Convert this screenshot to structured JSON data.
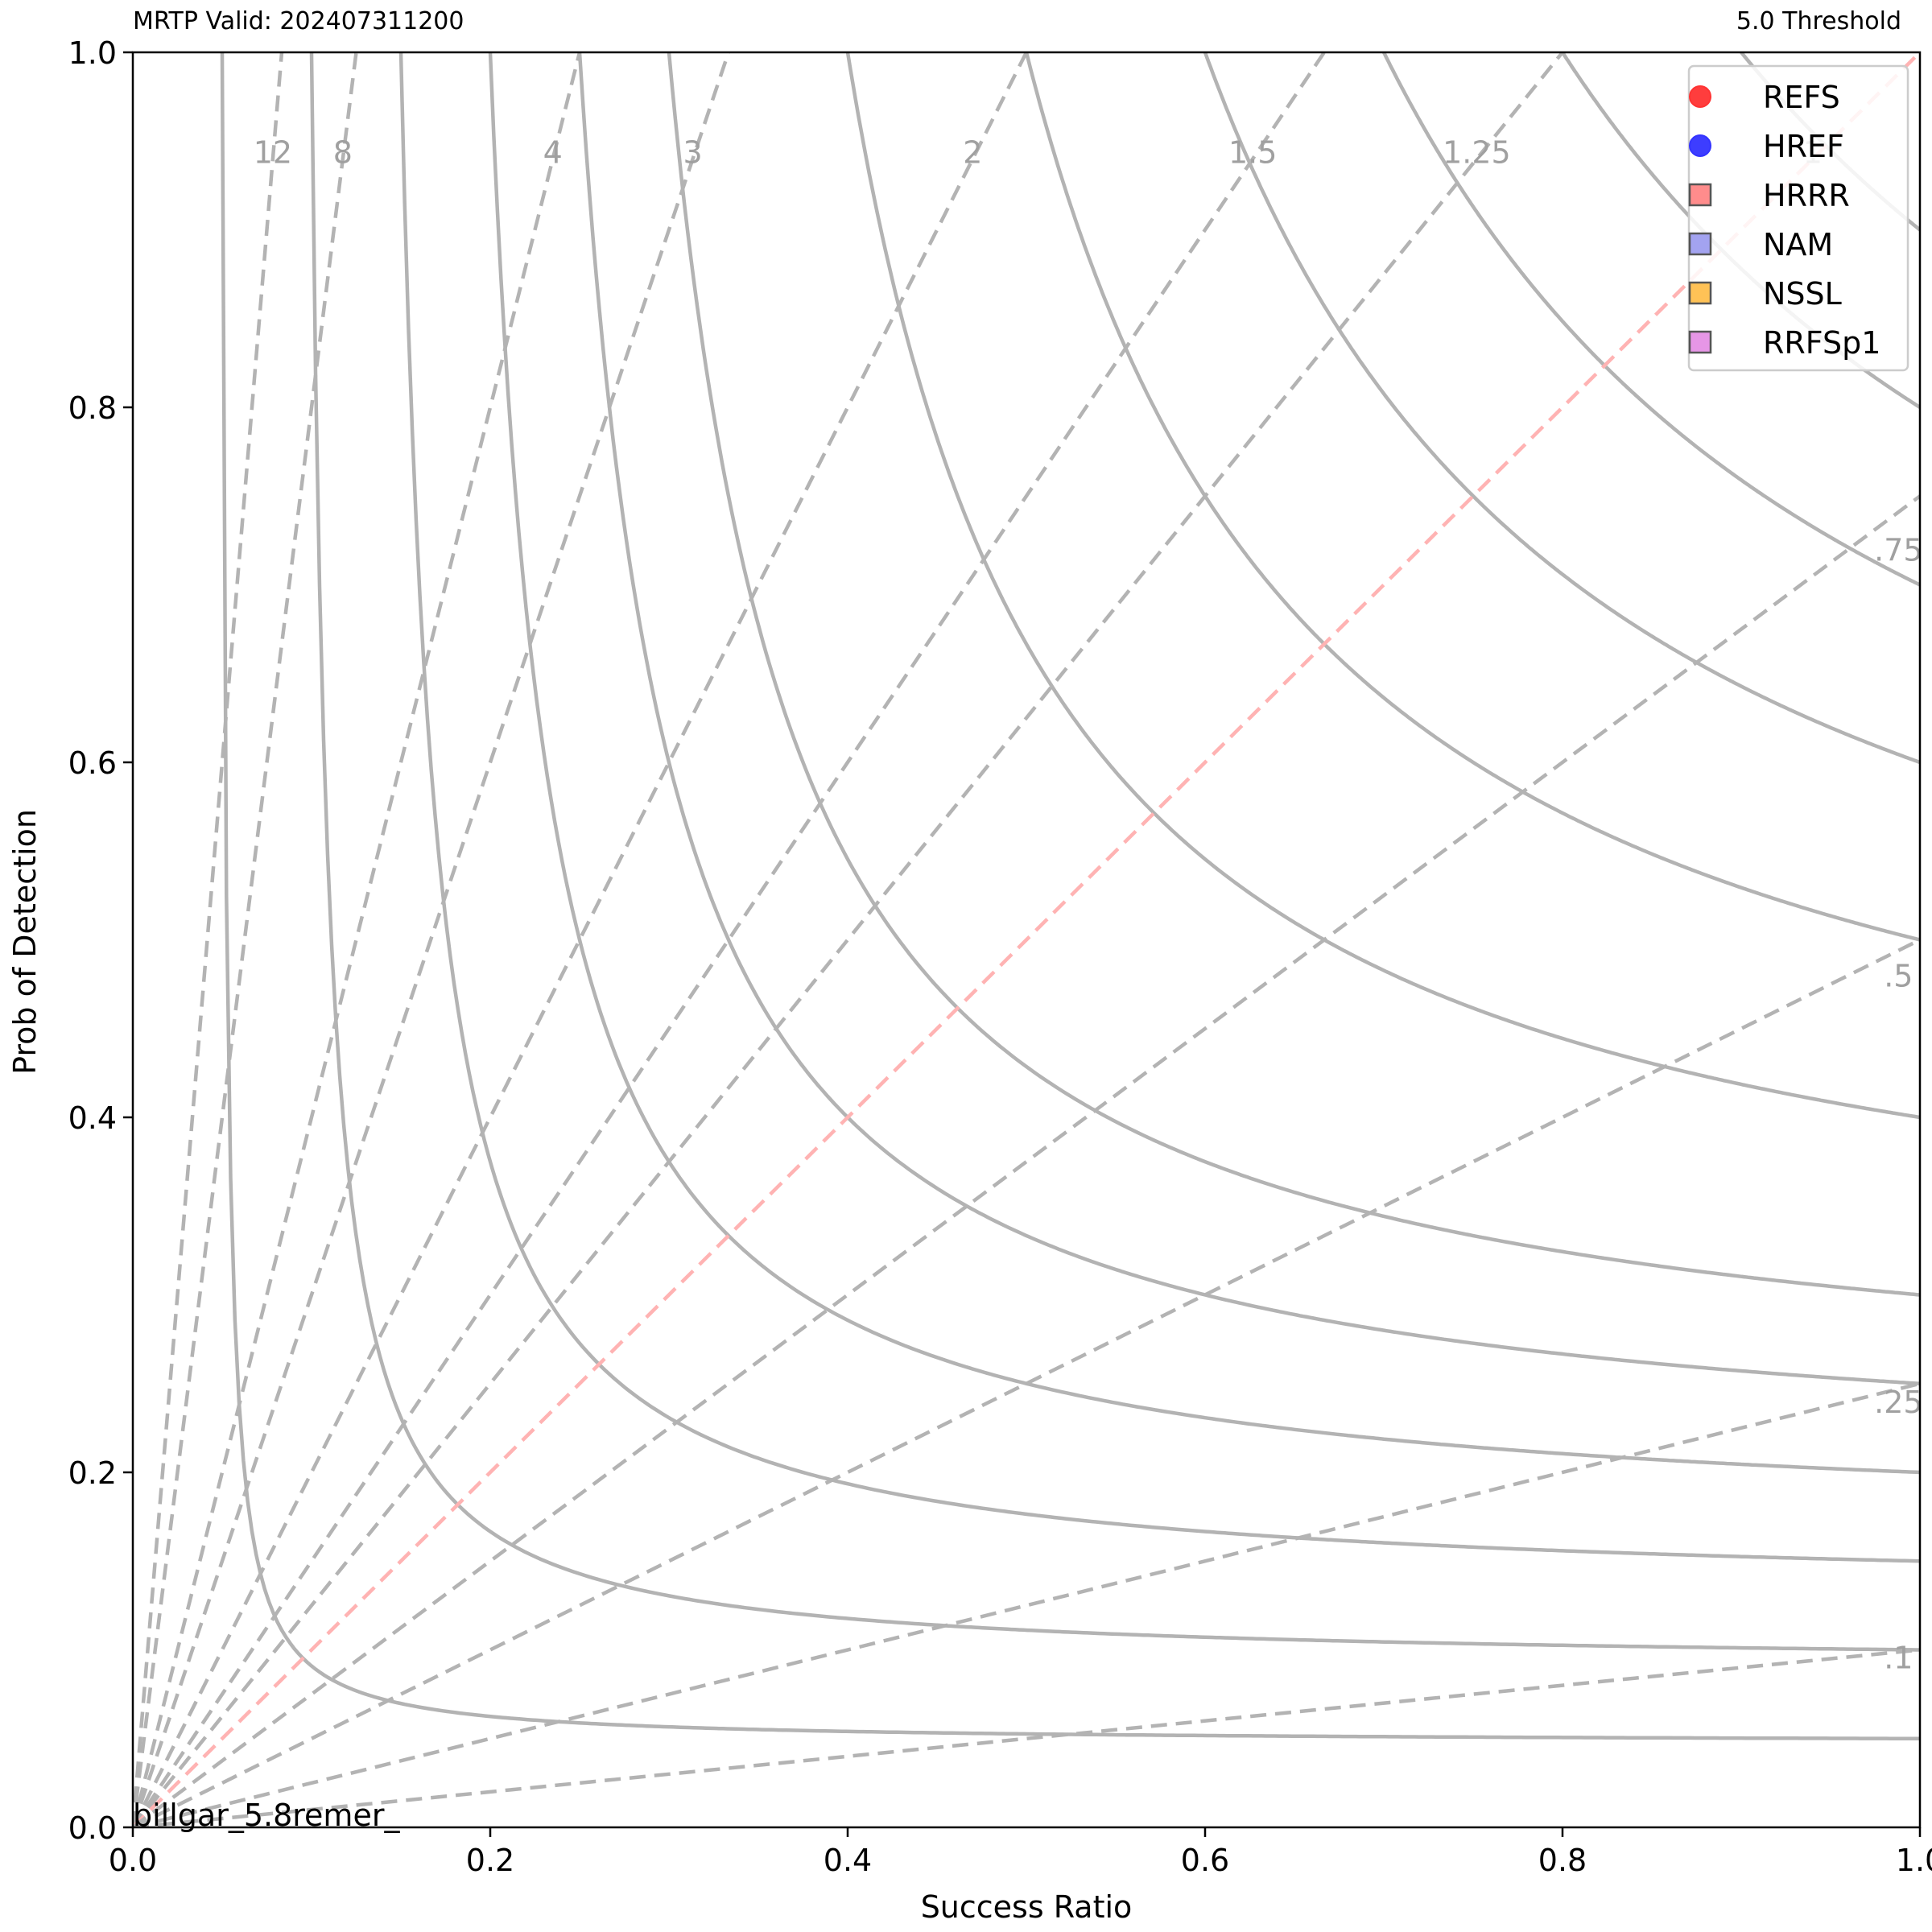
{
  "header": {
    "left_title": "MRTP Valid: 202407311200",
    "right_title": "5.0 Threshold"
  },
  "footer_text": "billgar_5.8remer_",
  "chart_data": {
    "type": "scatter",
    "title": "",
    "xlabel": "Success Ratio",
    "ylabel": "Prob of Detection",
    "xlim": [
      0.0,
      1.0
    ],
    "ylim": [
      0.0,
      1.0
    ],
    "x_ticks": [
      "0.0",
      "0.2",
      "0.4",
      "0.6",
      "0.8",
      "1.0"
    ],
    "y_ticks": [
      "0.0",
      "0.2",
      "0.4",
      "0.6",
      "0.8",
      "1.0"
    ],
    "grid": false,
    "legend_position": "top-right",
    "csi_contours": {
      "values": [
        0.05,
        0.1,
        0.15,
        0.2,
        0.25,
        0.3,
        0.4,
        0.5,
        0.6,
        0.7,
        0.8,
        0.9
      ],
      "style": "solid",
      "color": "#b3b3b3"
    },
    "bias_lines": {
      "values": [
        12,
        8,
        4,
        3,
        2,
        1.5,
        1.25,
        1,
        0.75,
        0.5,
        0.25,
        0.1
      ],
      "labels": [
        "12",
        "8",
        "4",
        "3",
        "2",
        "1.5",
        "1.25",
        "1",
        ".75",
        ".5",
        ".25",
        ".1"
      ],
      "style": "dashed",
      "color": "#b3b3b3",
      "unity_color": "#ffb3b3"
    },
    "series": [
      {
        "name": "REFS",
        "marker": "circle",
        "color": "#ff3333",
        "points": []
      },
      {
        "name": "HREF",
        "marker": "circle",
        "color": "#3333ff",
        "points": []
      },
      {
        "name": "HRRR",
        "marker": "square",
        "color": "#ff7f7f",
        "points": []
      },
      {
        "name": "NAM",
        "marker": "square",
        "color": "#9999ee",
        "points": []
      },
      {
        "name": "NSSL",
        "marker": "square",
        "color": "#ffbb44",
        "points": []
      },
      {
        "name": "RRFSp1",
        "marker": "square",
        "color": "#e38be3",
        "points": []
      }
    ]
  }
}
